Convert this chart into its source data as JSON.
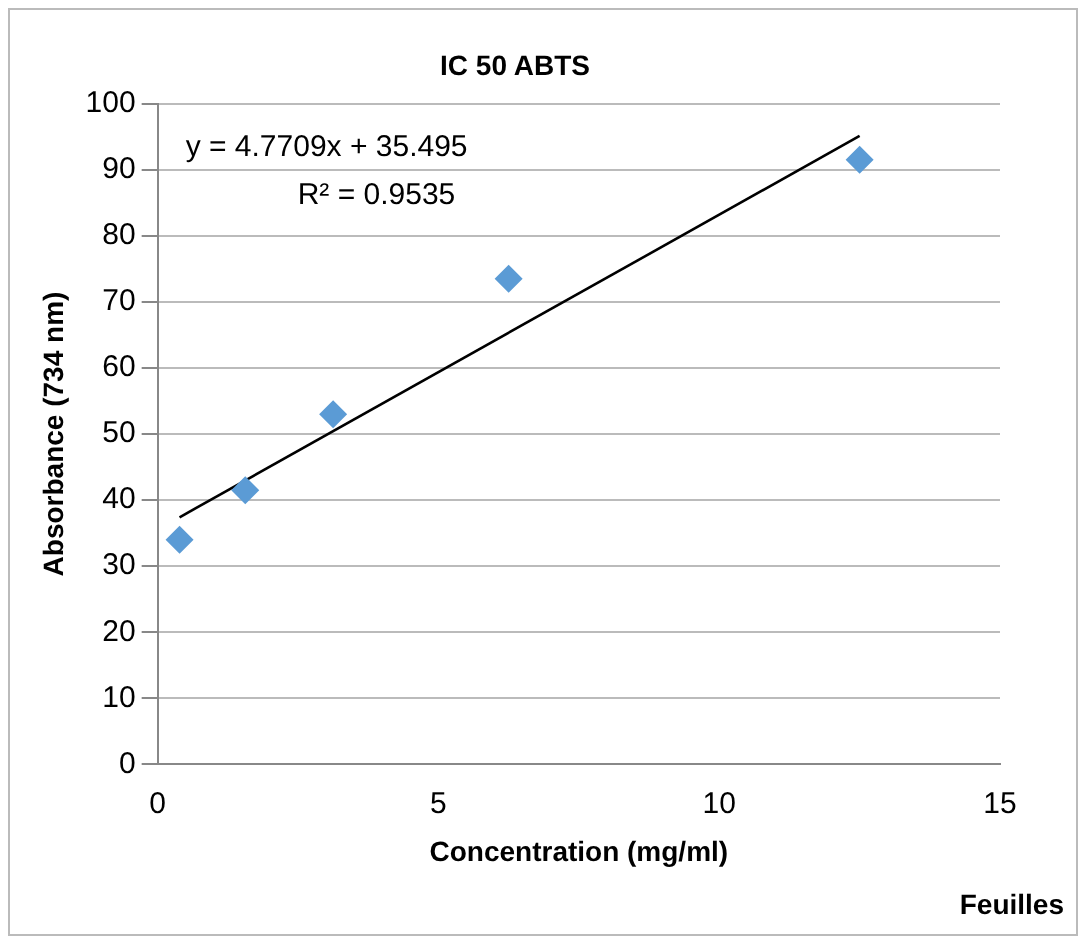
{
  "chart_data": {
    "type": "scatter",
    "title": "IC 50 ABTS",
    "xlabel": "Concentration (mg/ml)",
    "ylabel": "Absorbance (734 nm)",
    "annotations": [
      "y = 4.7709x + 35.495",
      "R² = 0.9535",
      "Feuilles"
    ],
    "x": [
      0.39,
      1.56,
      3.125,
      6.25,
      12.5
    ],
    "series": [
      {
        "color": "#5b9bd5",
        "values": [
          34,
          41.5,
          53,
          73.5,
          91.5
        ],
        "marker": "diamond"
      },
      {
        "type": "line",
        "color": "#000000",
        "x": [
          0.39,
          12.5
        ],
        "values": [
          37.4,
          95.1
        ],
        "marker": "none",
        "line_style": "solid"
      }
    ],
    "xlim": [
      0,
      15
    ],
    "xticks": [
      0,
      5,
      10,
      15
    ],
    "ylim": [
      0,
      100
    ],
    "yticks": [
      0,
      10,
      20,
      30,
      40,
      50,
      60,
      70,
      80,
      90,
      100
    ],
    "grid": "y",
    "legend": false
  }
}
